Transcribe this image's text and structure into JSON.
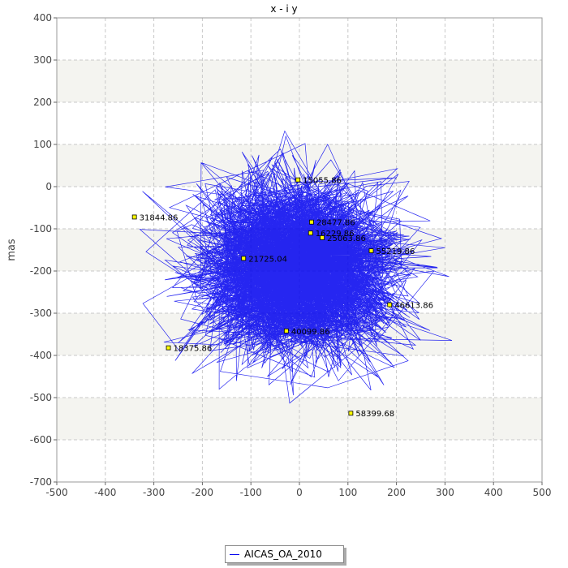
{
  "chart_data": {
    "type": "line",
    "title": "x - i y",
    "xlabel": "",
    "ylabel": "mas",
    "xlim": [
      -500,
      500
    ],
    "ylim": [
      -700,
      400
    ],
    "xticks": [
      -500,
      -400,
      -300,
      -200,
      -100,
      0,
      100,
      200,
      300,
      400,
      500
    ],
    "yticks": [
      -700,
      -600,
      -500,
      -400,
      -300,
      -200,
      -100,
      0,
      100,
      200,
      300,
      400
    ],
    "grid": true,
    "legend_position": "bottom-center",
    "series": [
      {
        "name": "AICAS_OA_2010",
        "color": "#0000ee",
        "description_note": ""
      }
    ],
    "annotations": [
      {
        "label": "15055.86",
        "x": -3,
        "y": 16
      },
      {
        "label": "31844.86",
        "x": -340,
        "y": -72
      },
      {
        "label": "28477.86",
        "x": 25,
        "y": -84
      },
      {
        "label": "16229.86",
        "x": 23,
        "y": -110
      },
      {
        "label": "25063.86",
        "x": 47,
        "y": -121
      },
      {
        "label": "55219.86",
        "x": 148,
        "y": -152
      },
      {
        "label": "21725.04",
        "x": -115,
        "y": -170
      },
      {
        "label": "46613.86",
        "x": 186,
        "y": -280
      },
      {
        "label": "40099.86",
        "x": -27,
        "y": -342
      },
      {
        "label": "18375.86",
        "x": -270,
        "y": -382
      },
      {
        "label": "58399.68",
        "x": 106,
        "y": -537
      }
    ],
    "marker_color": "#ffff00"
  }
}
